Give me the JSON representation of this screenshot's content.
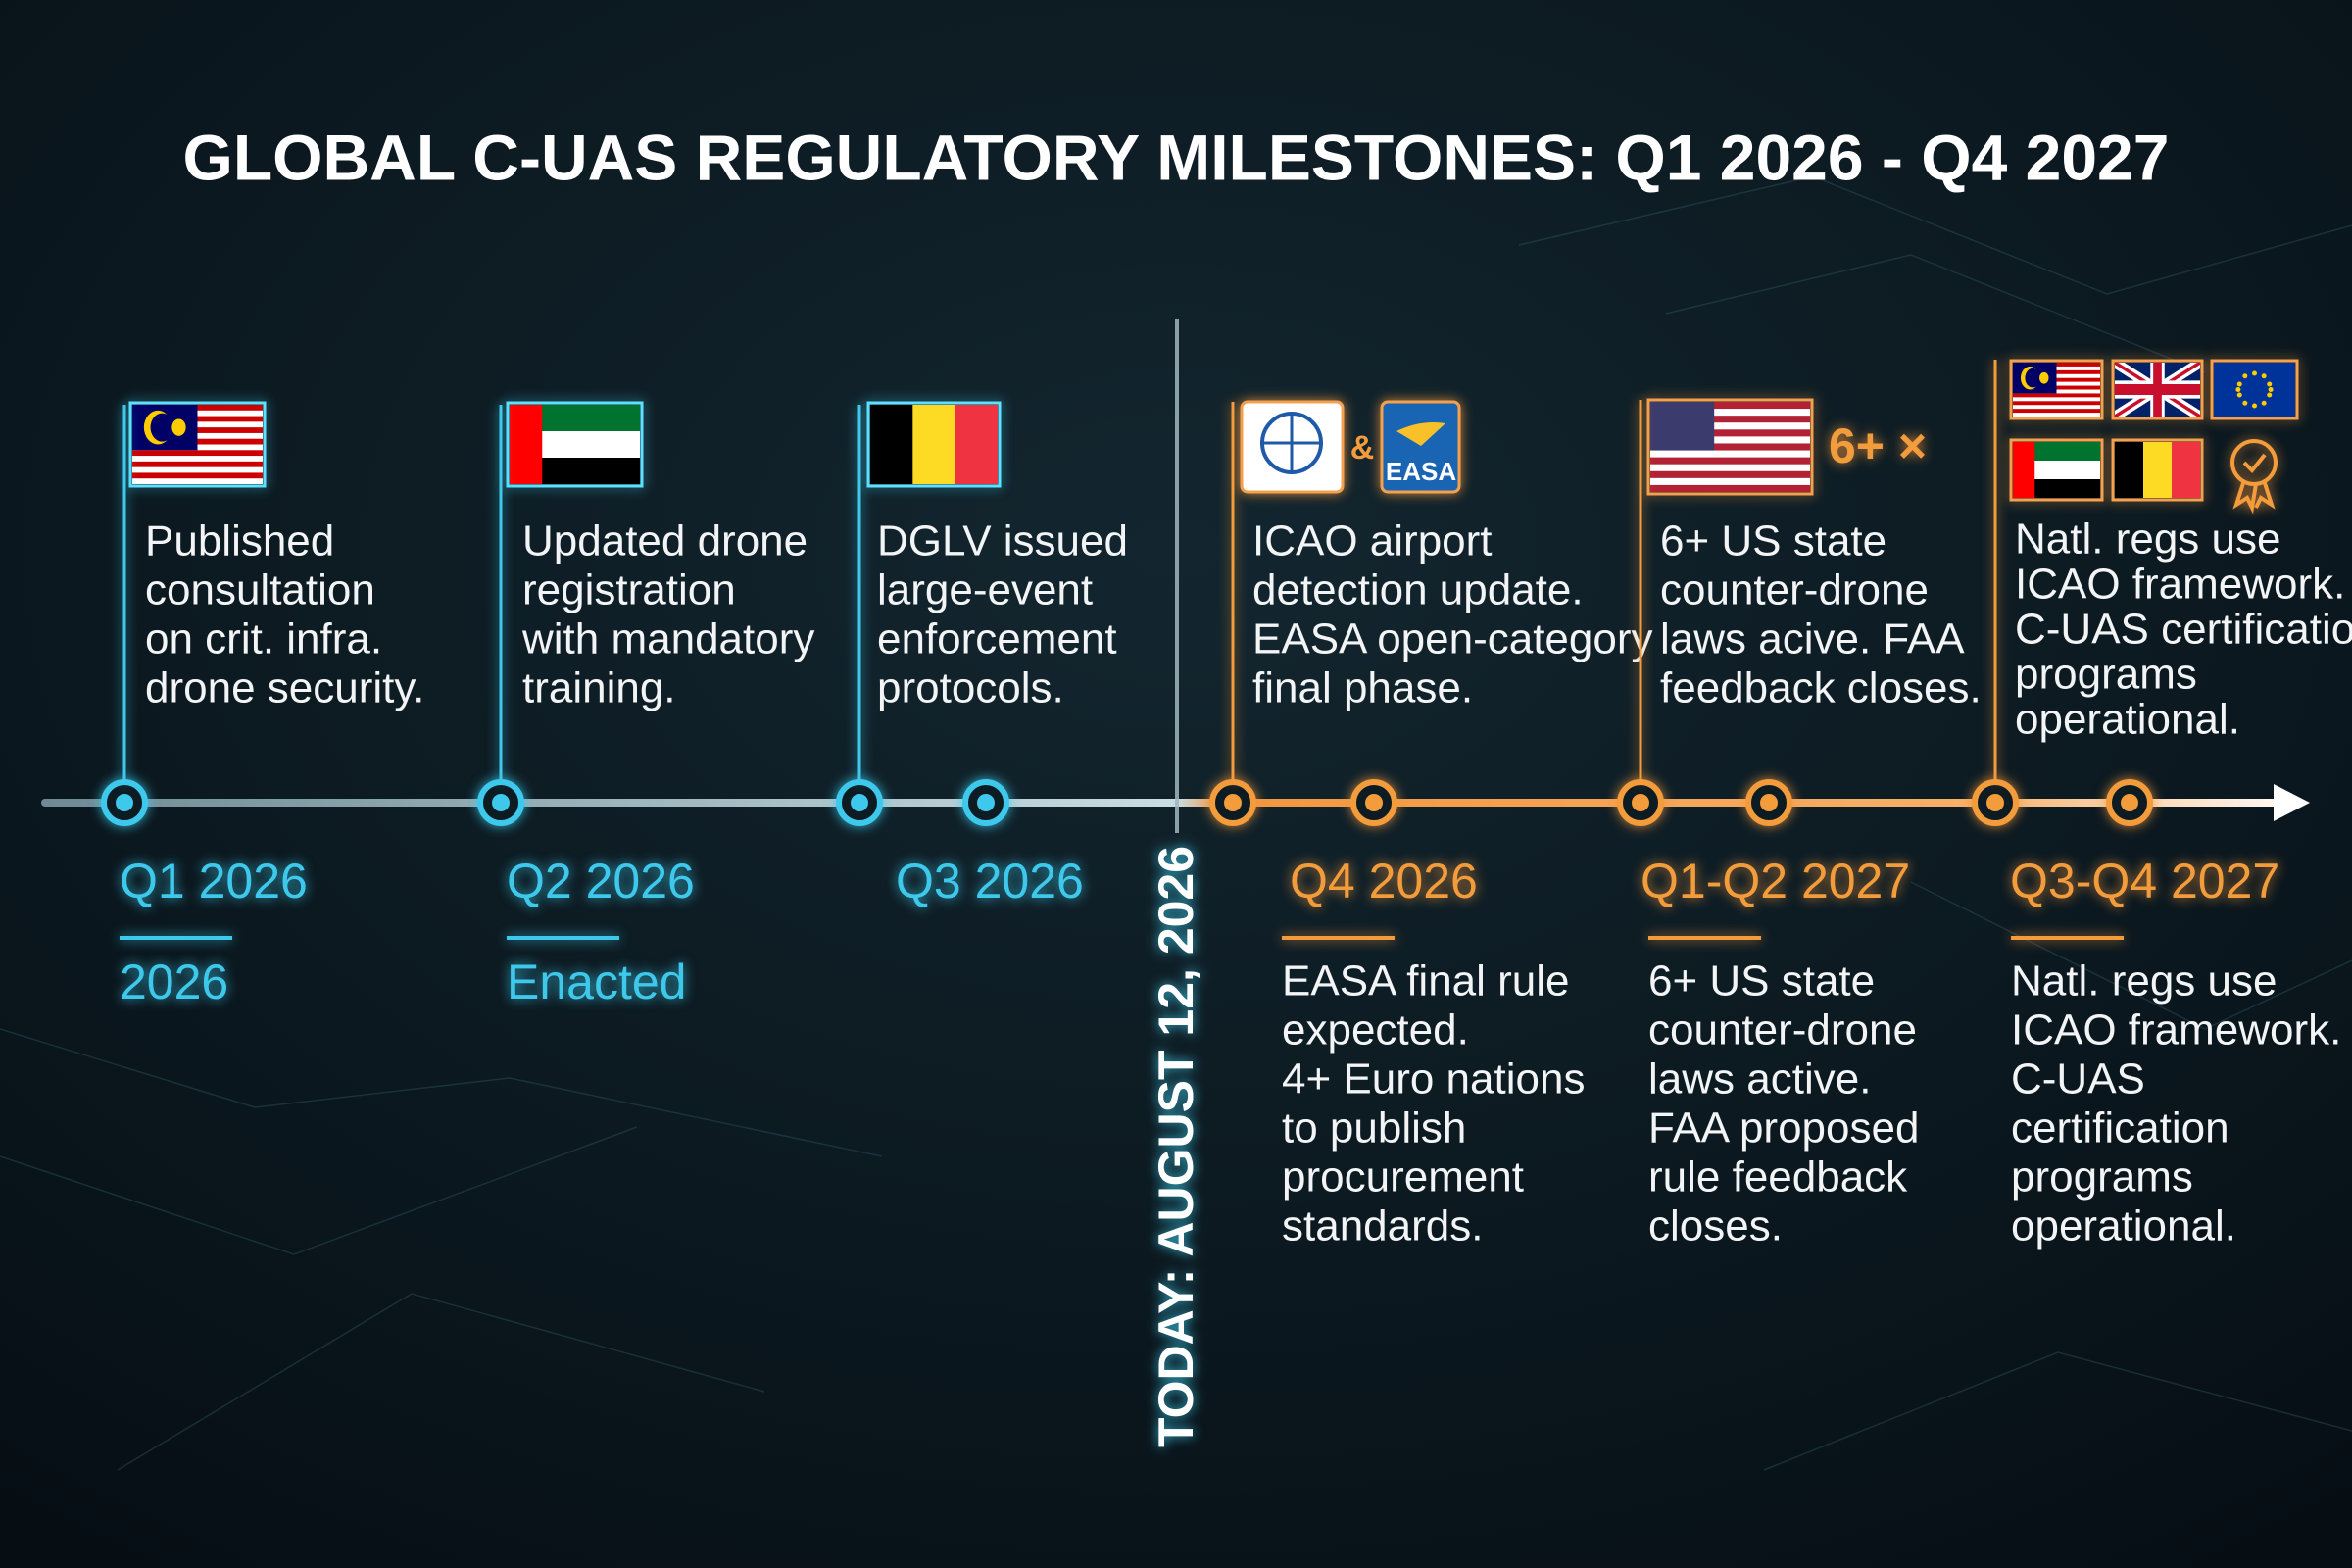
{
  "title": "GLOBAL C-UAS REGULATORY MILESTONES: Q1 2026 - Q4 2027",
  "today": "TODAY: AUGUST 12, 2026",
  "icons": {
    "and": "&",
    "easa": "EASA",
    "count": "6+ ×"
  },
  "milestones": [
    {
      "lines": [
        "Published",
        "consultation",
        "on crit. infra.",
        "drone security."
      ]
    },
    {
      "lines": [
        "Updated drone",
        "registration",
        "with mandatory",
        "training."
      ]
    },
    {
      "lines": [
        "DGLV issued",
        "large-event",
        "enforcement",
        "protocols."
      ]
    },
    {
      "lines": [
        "ICAO airport",
        "detection update.",
        "EASA open-category",
        "final phase."
      ]
    },
    {
      "lines": [
        "6+ US state",
        "counter-drone",
        "laws acive. FAA",
        "feedback closes."
      ]
    },
    {
      "lines": [
        "Natl. regs use",
        "ICAO framework.",
        "C-UAS certification",
        "programs",
        "operational."
      ]
    }
  ],
  "periods": [
    {
      "label": "Q1 2026",
      "note": "2026"
    },
    {
      "label": "Q2 2026",
      "note": "Enacted"
    },
    {
      "label": "Q3 2026"
    },
    {
      "label": "Q4 2026",
      "lines": [
        "EASA final rule",
        "expected.",
        "4+ Euro nations",
        "to publish",
        "procurement",
        "standards."
      ]
    },
    {
      "label": "Q1-Q2 2027",
      "lines": [
        "6+ US state",
        "counter-drone",
        "laws active.",
        "FAA proposed",
        "rule feedback",
        "closes."
      ]
    },
    {
      "label": "Q3-Q4 2027",
      "lines": [
        "Natl. regs use",
        "ICAO framework.",
        "C-UAS",
        "certification",
        "programs",
        "operational."
      ]
    }
  ]
}
